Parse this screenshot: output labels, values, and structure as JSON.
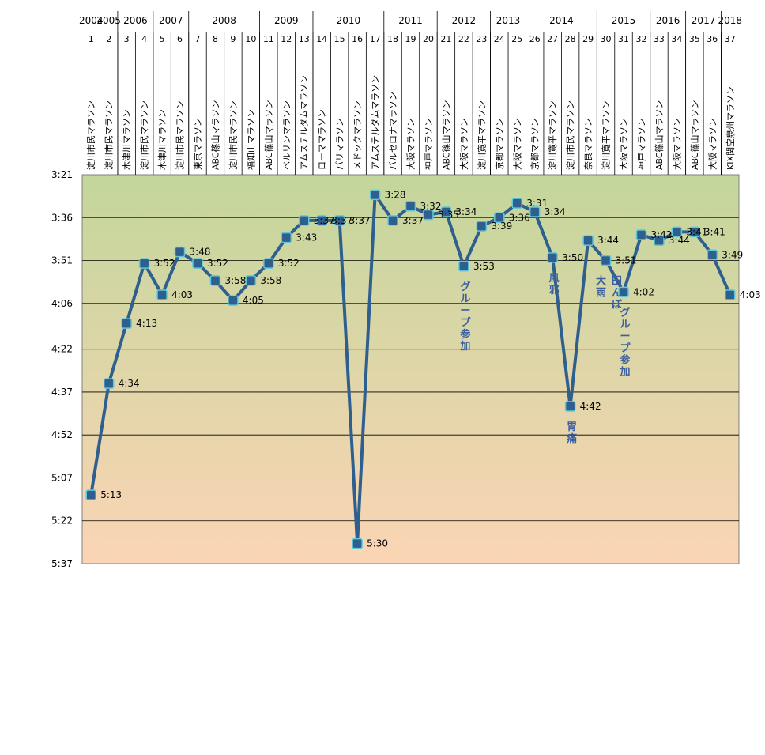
{
  "chart_data": {
    "type": "line",
    "x": [
      1,
      2,
      3,
      4,
      5,
      6,
      7,
      8,
      9,
      10,
      11,
      12,
      13,
      14,
      15,
      16,
      17,
      18,
      19,
      20,
      21,
      22,
      23,
      24,
      25,
      26,
      27,
      28,
      29,
      30,
      31,
      32,
      33,
      34,
      35,
      36,
      37
    ],
    "race_names": [
      "淀川市民マラソン",
      "淀川市民マラソン",
      "木津川マラソン",
      "淀川市民マラソン",
      "木津川マラソン",
      "淀川市民マラソン",
      "東京マラソン",
      "ABC篠山マラソン",
      "淀川市民マラソン",
      "福知山マラソン",
      "ABC篠山マラソン",
      "ベルリンマラソン",
      "アムステルダムマラソン",
      "ローママラソン",
      "パリマラソン",
      "メドックマラソン",
      "アムステルダムマラソン",
      "バルセロナマラソン",
      "大阪マラソン",
      "神戸マラソン",
      "ABC篠山マラソン",
      "大阪マラソン",
      "淀川寛平マラソン",
      "京都マラソン",
      "大阪マラソン",
      "京都マラソン",
      "淀川寛平マラソン",
      "淀川市民マラソン",
      "奈良マラソン",
      "淀川寛平マラソン",
      "大阪マラソン",
      "神戸マラソン",
      "ABC篠山マラソン",
      "大阪マラソン",
      "ABC篠山マラソン",
      "大阪マラソン",
      "KIX関空泉州マラソン"
    ],
    "years": [
      {
        "label": "2004",
        "start": 1,
        "end": 1
      },
      {
        "label": "2005",
        "start": 2,
        "end": 2
      },
      {
        "label": "2006",
        "start": 3,
        "end": 4
      },
      {
        "label": "2007",
        "start": 5,
        "end": 6
      },
      {
        "label": "2008",
        "start": 7,
        "end": 10
      },
      {
        "label": "2009",
        "start": 11,
        "end": 13
      },
      {
        "label": "2010",
        "start": 14,
        "end": 17
      },
      {
        "label": "2011",
        "start": 18,
        "end": 20
      },
      {
        "label": "2012",
        "start": 21,
        "end": 23
      },
      {
        "label": "2013",
        "start": 24,
        "end": 25
      },
      {
        "label": "2014",
        "start": 26,
        "end": 29
      },
      {
        "label": "2015",
        "start": 30,
        "end": 32
      },
      {
        "label": "2016",
        "start": 33,
        "end": 34
      },
      {
        "label": "2017",
        "start": 35,
        "end": 36
      },
      {
        "label": "2018",
        "start": 37,
        "end": 37
      }
    ],
    "times": [
      "5:13",
      "4:34",
      "4:13",
      "3:52",
      "4:03",
      "3:48",
      "3:52",
      "3:58",
      "4:05",
      "3:58",
      "3:52",
      "3:43",
      "3:37",
      "3:37",
      "3:37",
      "5:30",
      "3:28",
      "3:37",
      "3:32",
      "3:35",
      "3:34",
      "3:53",
      "3:39",
      "3:36",
      "3:31",
      "3:34",
      "3:50",
      "4:42",
      "3:44",
      "3:51",
      "4:02",
      "3:42",
      "3:44",
      "3:41",
      "3:41",
      "3:49",
      "4:03"
    ],
    "y_ticks": [
      "3:21",
      "3:36",
      "3:51",
      "4:06",
      "4:22",
      "4:37",
      "4:52",
      "5:07",
      "5:22",
      "5:37"
    ],
    "y_range_minutes": [
      201,
      337
    ],
    "annotations": [
      {
        "x": 22,
        "text": "グループ参加"
      },
      {
        "x": 27,
        "text": "風邪"
      },
      {
        "x": 28,
        "text": "胃痛"
      },
      {
        "x": 30,
        "text": "大雨 田んぼ"
      },
      {
        "x": 31,
        "text": "グループ参加"
      }
    ],
    "series_color": "#2f5f8f",
    "marker_edge_color": "#5fc8d8",
    "background_gradient": [
      "#c3d69b",
      "#fbd5b5"
    ],
    "annotation_color": "#3b5fa0",
    "grid": true
  }
}
